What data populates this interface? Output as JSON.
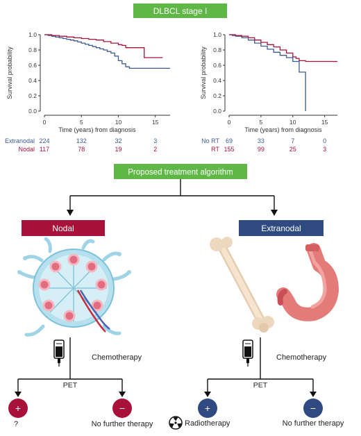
{
  "header": {
    "title": "DLBCL stage I",
    "title_bg": "#5fb845",
    "title_color": "#ffffff"
  },
  "colors": {
    "blue": "#3b5a92",
    "red": "#a8123a",
    "axis": "#333333"
  },
  "chart_data": [
    {
      "type": "line",
      "title": "",
      "xlabel": "Time (years) from diagnosis",
      "ylabel": "Survival probability",
      "xlim": [
        0,
        17
      ],
      "ylim": [
        0,
        1
      ],
      "x_ticks": [
        0,
        5,
        10,
        15
      ],
      "y_ticks": [
        0.0,
        0.2,
        0.4,
        0.6,
        0.8,
        1.0
      ],
      "series": [
        {
          "name": "Extranodal",
          "color": "#3b5a92",
          "points": [
            [
              0,
              1.0
            ],
            [
              0.5,
              0.99
            ],
            [
              1,
              0.98
            ],
            [
              1.5,
              0.97
            ],
            [
              2,
              0.96
            ],
            [
              2.5,
              0.95
            ],
            [
              3,
              0.94
            ],
            [
              3.5,
              0.93
            ],
            [
              4,
              0.92
            ],
            [
              4.5,
              0.905
            ],
            [
              5,
              0.89
            ],
            [
              5.5,
              0.875
            ],
            [
              6,
              0.86
            ],
            [
              6.5,
              0.845
            ],
            [
              7,
              0.83
            ],
            [
              7.5,
              0.815
            ],
            [
              8,
              0.8
            ],
            [
              8.5,
              0.78
            ],
            [
              9,
              0.76
            ],
            [
              9.5,
              0.72
            ],
            [
              10,
              0.66
            ],
            [
              10.5,
              0.62
            ],
            [
              11,
              0.58
            ],
            [
              11.5,
              0.56
            ],
            [
              12.5,
              0.56
            ],
            [
              17,
              0.56
            ]
          ]
        },
        {
          "name": "Nodal",
          "color": "#a8123a",
          "points": [
            [
              0,
              1.0
            ],
            [
              1,
              0.99
            ],
            [
              2,
              0.98
            ],
            [
              3,
              0.97
            ],
            [
              4,
              0.96
            ],
            [
              5,
              0.95
            ],
            [
              6,
              0.94
            ],
            [
              7,
              0.93
            ],
            [
              8,
              0.91
            ],
            [
              9,
              0.89
            ],
            [
              10,
              0.87
            ],
            [
              10.5,
              0.86
            ],
            [
              11,
              0.83
            ],
            [
              12,
              0.83
            ],
            [
              13,
              0.83
            ],
            [
              13.5,
              0.7
            ],
            [
              15,
              0.7
            ],
            [
              16,
              0.7
            ]
          ]
        }
      ],
      "risk_table": {
        "x": [
          0,
          5,
          10,
          15
        ],
        "rows": [
          {
            "label": "Extranodal",
            "color": "#3b5a92",
            "values": [
              224,
              132,
              32,
              3
            ]
          },
          {
            "label": "Nodal",
            "color": "#a8123a",
            "values": [
              117,
              78,
              19,
              2
            ]
          }
        ]
      }
    },
    {
      "type": "line",
      "title": "",
      "xlabel": "Time (years) from diagnosis",
      "ylabel": "Survival probability",
      "xlim": [
        0,
        17
      ],
      "ylim": [
        0,
        1
      ],
      "x_ticks": [
        0,
        5,
        10,
        15
      ],
      "y_ticks": [
        0.0,
        0.2,
        0.4,
        0.6,
        0.8,
        1.0
      ],
      "series": [
        {
          "name": "No RT",
          "color": "#3b5a92",
          "points": [
            [
              0,
              1.0
            ],
            [
              0.5,
              0.99
            ],
            [
              1,
              0.98
            ],
            [
              2,
              0.96
            ],
            [
              3,
              0.93
            ],
            [
              4,
              0.89
            ],
            [
              5,
              0.85
            ],
            [
              6,
              0.81
            ],
            [
              7,
              0.77
            ],
            [
              8,
              0.73
            ],
            [
              9,
              0.7
            ],
            [
              10,
              0.65
            ],
            [
              11,
              0.51
            ],
            [
              12,
              0.51
            ],
            [
              12,
              0.0
            ]
          ]
        },
        {
          "name": "RT",
          "color": "#a8123a",
          "points": [
            [
              0,
              1.0
            ],
            [
              1,
              0.99
            ],
            [
              2,
              0.98
            ],
            [
              3,
              0.96
            ],
            [
              4,
              0.93
            ],
            [
              5,
              0.9
            ],
            [
              6,
              0.87
            ],
            [
              7,
              0.84
            ],
            [
              8,
              0.8
            ],
            [
              9,
              0.76
            ],
            [
              10,
              0.71
            ],
            [
              10.5,
              0.69
            ],
            [
              11,
              0.66
            ],
            [
              12,
              0.65
            ],
            [
              17,
              0.65
            ]
          ]
        }
      ],
      "risk_table": {
        "x": [
          0,
          5,
          10,
          15
        ],
        "rows": [
          {
            "label": "No RT",
            "color": "#3b5a92",
            "values": [
              69,
              33,
              7,
              0
            ]
          },
          {
            "label": "RT",
            "color": "#a8123a",
            "values": [
              155,
              99,
              25,
              3
            ]
          }
        ]
      }
    }
  ],
  "algorithm": {
    "title": "Proposed treatment algorithm",
    "title_bg": "#5fb845",
    "nodal": {
      "label": "Nodal",
      "bg": "#a8123a",
      "illustration": "lymph-node-illustration",
      "step": "Chemotherapy",
      "step_icon": "iv-bag-icon",
      "branch_label": "PET",
      "positive": {
        "symbol": "+",
        "result": "?"
      },
      "negative": {
        "symbol": "−",
        "result": "No further therapy"
      }
    },
    "extranodal": {
      "label": "Extranodal",
      "bg": "#2e4a80",
      "illustrations": [
        "bone-illustration",
        "stomach-illustration"
      ],
      "step": "Chemotherapy",
      "step_icon": "iv-bag-icon",
      "branch_label": "PET",
      "positive": {
        "symbol": "+",
        "result": "Radiotherapy",
        "result_icon": "radiation-icon"
      },
      "negative": {
        "symbol": "−",
        "result": "No further therapy"
      }
    }
  }
}
